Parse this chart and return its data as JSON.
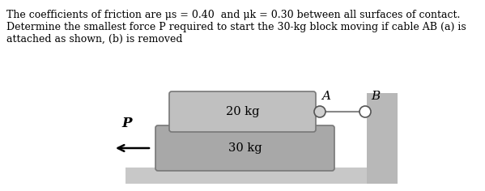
{
  "bg_color": "#ffffff",
  "text_line1": "The coefficients of friction are μs = 0.40  and μk = 0.30 between all surfaces of contact.",
  "text_line2": "Determine the smallest force P required to start the 30-kg block moving if cable AB (a) is",
  "text_line3": "attached as shown, (b) is removed",
  "block_30_color": "#a8a8a8",
  "block_20_color": "#c0c0c0",
  "block_30_label": "30 kg",
  "block_20_label": "20 kg",
  "wall_color": "#b8b8b8",
  "floor_color": "#c8c8c8",
  "label_A": "A",
  "label_B": "B",
  "label_P": "P",
  "text_fontsize": 9.0,
  "block_fontsize": 10.5,
  "label_fontsize": 11.0
}
